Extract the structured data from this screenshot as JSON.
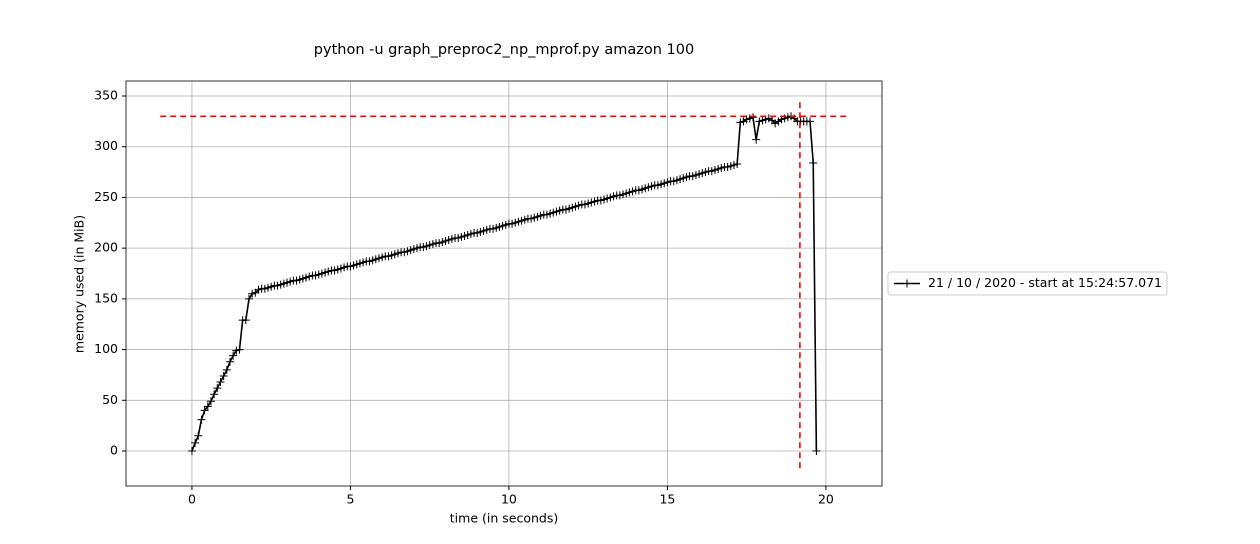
{
  "chart_data": {
    "type": "line",
    "title": "python -u graph_preproc2_np_mprof.py amazon 100",
    "xlabel": "time (in seconds)",
    "ylabel": "memory used (in MiB)",
    "x": [
      0,
      0.1,
      0.2,
      0.3,
      0.4,
      0.5,
      0.6,
      0.7,
      0.8,
      0.9,
      1,
      1.1,
      1.2,
      1.3,
      1.4,
      1.5,
      1.6,
      1.7,
      1.8,
      1.9,
      2,
      2.1,
      2.2,
      2.3,
      2.4,
      2.5,
      2.6,
      2.7,
      2.8,
      2.9,
      3,
      3.1,
      3.2,
      3.3,
      3.4,
      3.5,
      3.6,
      3.7,
      3.8,
      3.9,
      4,
      4.1,
      4.2,
      4.3,
      4.4,
      4.5,
      4.6,
      4.7,
      4.8,
      4.9,
      5,
      5.1,
      5.2,
      5.3,
      5.4,
      5.5,
      5.6,
      5.7,
      5.8,
      5.9,
      6,
      6.1,
      6.2,
      6.3,
      6.4,
      6.5,
      6.6,
      6.7,
      6.8,
      6.9,
      7,
      7.1,
      7.2,
      7.3,
      7.4,
      7.5,
      7.6,
      7.7,
      7.8,
      7.9,
      8,
      8.1,
      8.2,
      8.3,
      8.4,
      8.5,
      8.6,
      8.7,
      8.8,
      8.9,
      9,
      9.1,
      9.2,
      9.3,
      9.4,
      9.5,
      9.6,
      9.7,
      9.8,
      9.9,
      10,
      10.1,
      10.2,
      10.3,
      10.4,
      10.5,
      10.6,
      10.7,
      10.8,
      10.9,
      11,
      11.1,
      11.2,
      11.3,
      11.4,
      11.5,
      11.6,
      11.7,
      11.8,
      11.9,
      12,
      12.1,
      12.2,
      12.3,
      12.4,
      12.5,
      12.6,
      12.7,
      12.8,
      12.9,
      13,
      13.1,
      13.2,
      13.3,
      13.4,
      13.5,
      13.6,
      13.7,
      13.8,
      13.9,
      14,
      14.1,
      14.2,
      14.3,
      14.4,
      14.5,
      14.6,
      14.7,
      14.8,
      14.9,
      15,
      15.1,
      15.2,
      15.3,
      15.4,
      15.5,
      15.6,
      15.7,
      15.8,
      15.9,
      16,
      16.1,
      16.2,
      16.3,
      16.4,
      16.5,
      16.6,
      16.7,
      16.8,
      16.9,
      17,
      17.1,
      17.2,
      17.3,
      17.4,
      17.5,
      17.6,
      17.7,
      17.8,
      17.9,
      18,
      18.1,
      18.2,
      18.3,
      18.4,
      18.5,
      18.6,
      18.7,
      18.8,
      18.9,
      19,
      19.1,
      19.2,
      19.3,
      19.4,
      19.5,
      19.6,
      19.7
    ],
    "series": [
      {
        "name": "21 / 10 / 2020 - start at 15:24:57.071",
        "color": "#000000",
        "values": [
          0,
          8,
          15,
          31,
          40,
          44,
          49,
          56,
          62,
          68,
          74,
          80,
          88,
          94,
          99,
          100,
          129,
          129,
          150,
          155,
          156,
          159,
          160,
          160,
          161,
          162,
          163,
          163,
          164,
          165,
          166,
          167,
          168,
          168,
          169,
          170,
          171,
          172,
          173,
          173,
          174,
          175,
          176,
          177,
          178,
          178,
          179,
          180,
          181,
          182,
          182,
          183,
          184,
          185,
          186,
          187,
          187,
          188,
          189,
          190,
          191,
          192,
          192,
          193,
          194,
          195,
          196,
          196,
          197,
          198,
          199,
          200,
          201,
          201,
          202,
          203,
          204,
          205,
          205,
          206,
          207,
          208,
          209,
          210,
          210,
          211,
          212,
          213,
          214,
          215,
          215,
          216,
          217,
          218,
          219,
          219,
          220,
          221,
          222,
          223,
          224,
          224,
          225,
          226,
          227,
          228,
          229,
          229,
          230,
          231,
          232,
          233,
          233,
          234,
          235,
          236,
          237,
          238,
          238,
          239,
          240,
          241,
          242,
          243,
          243,
          244,
          245,
          246,
          247,
          247,
          248,
          249,
          250,
          251,
          252,
          252,
          253,
          254,
          255,
          256,
          257,
          257,
          258,
          259,
          260,
          261,
          262,
          262,
          263,
          264,
          265,
          266,
          266,
          267,
          268,
          269,
          270,
          271,
          271,
          272,
          273,
          274,
          275,
          276,
          276,
          277,
          278,
          279,
          280,
          280,
          281,
          282,
          283,
          324,
          325,
          327,
          328,
          329,
          307,
          325,
          326,
          327,
          328,
          326,
          323,
          325,
          327,
          328,
          329,
          330,
          328,
          325,
          325,
          325,
          325,
          325,
          284,
          0
        ]
      }
    ],
    "max_lines": {
      "color": "#ff0000",
      "y": 330,
      "x": 19.18,
      "hspan": [
        -1,
        20.7
      ],
      "vspan": [
        -17,
        347
      ]
    },
    "xlim": [
      -2.08,
      21.77
    ],
    "ylim": [
      -34.5,
      364.8
    ],
    "xticks": [
      0,
      5,
      10,
      15,
      20
    ],
    "yticks": [
      0,
      50,
      100,
      150,
      200,
      250,
      300,
      350
    ],
    "grid": true,
    "legend": "outside-right"
  }
}
